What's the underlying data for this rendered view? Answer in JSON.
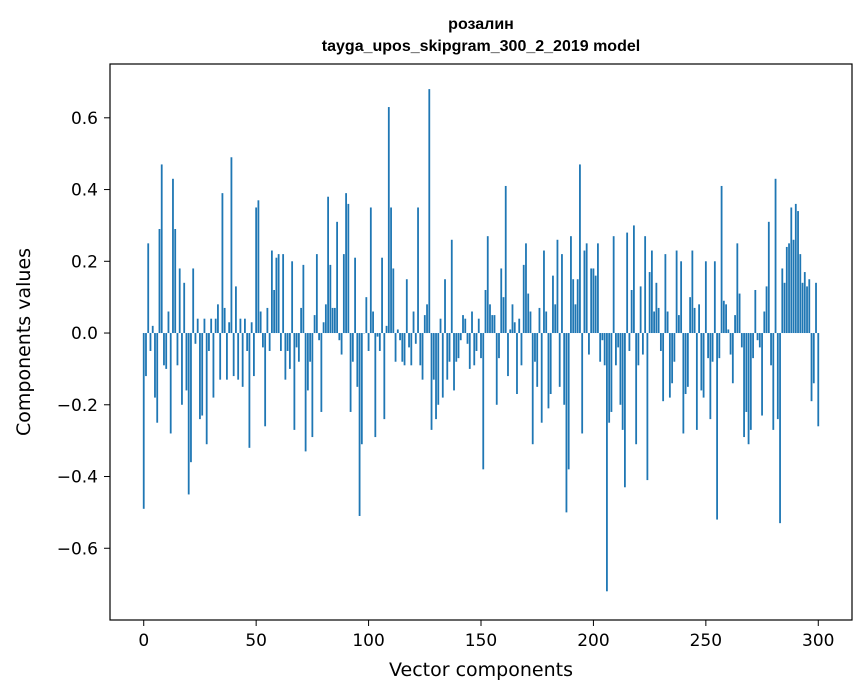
{
  "chart_data": {
    "type": "bar",
    "title": "розалин",
    "subtitle": "tayga_upos_skipgram_300_2_2019 model",
    "xlabel": "Vector components",
    "ylabel": "Components values",
    "xlim": [
      -15,
      315
    ],
    "ylim": [
      -0.8,
      0.75
    ],
    "xticks": [
      0,
      50,
      100,
      150,
      200,
      250,
      300
    ],
    "yticks": [
      -0.6,
      -0.4,
      -0.2,
      0.0,
      0.2,
      0.4,
      0.6
    ],
    "xtick_labels": [
      "0",
      "50",
      "100",
      "150",
      "200",
      "250",
      "300"
    ],
    "ytick_labels": [
      "−0.6",
      "−0.4",
      "−0.2",
      "0.0",
      "0.2",
      "0.4",
      "0.6"
    ],
    "grid": false,
    "bar_color": "#1f77b4",
    "values": [
      -0.49,
      -0.12,
      0.25,
      -0.05,
      0.02,
      -0.18,
      -0.25,
      0.29,
      0.47,
      -0.09,
      -0.1,
      0.06,
      -0.28,
      0.43,
      0.29,
      -0.09,
      0.18,
      -0.2,
      0.14,
      -0.16,
      -0.45,
      -0.36,
      0.18,
      -0.03,
      0.04,
      -0.24,
      -0.23,
      0.04,
      -0.31,
      -0.05,
      0.04,
      -0.18,
      0.04,
      0.08,
      -0.13,
      0.39,
      0.07,
      -0.13,
      0.03,
      0.49,
      -0.12,
      0.13,
      -0.13,
      0.04,
      -0.15,
      0.04,
      -0.05,
      -0.32,
      0.03,
      -0.12,
      0.35,
      0.37,
      0.06,
      -0.04,
      -0.26,
      0.07,
      -0.05,
      0.23,
      0.12,
      0.21,
      0.22,
      -0.05,
      0.22,
      -0.13,
      -0.05,
      -0.1,
      0.2,
      -0.27,
      -0.04,
      -0.08,
      0.07,
      0.19,
      -0.33,
      -0.16,
      -0.08,
      -0.29,
      0.05,
      0.22,
      -0.02,
      -0.22,
      0.03,
      0.08,
      0.38,
      0.19,
      0.07,
      0.07,
      0.31,
      -0.02,
      -0.06,
      0.22,
      0.39,
      0.36,
      -0.22,
      -0.08,
      0.21,
      -0.15,
      -0.51,
      -0.31,
      0.0,
      0.1,
      -0.05,
      0.35,
      0.06,
      -0.29,
      -0.01,
      -0.05,
      0.21,
      -0.24,
      0.02,
      0.63,
      0.35,
      0.18,
      -0.08,
      0.01,
      -0.02,
      -0.08,
      -0.09,
      0.15,
      -0.04,
      -0.09,
      0.06,
      -0.03,
      0.35,
      -0.09,
      -0.13,
      0.05,
      0.08,
      0.68,
      -0.27,
      -0.13,
      -0.24,
      -0.2,
      0.04,
      -0.18,
      0.15,
      -0.13,
      -0.08,
      0.26,
      -0.16,
      -0.08,
      -0.07,
      -0.02,
      0.05,
      0.04,
      -0.03,
      -0.1,
      0.06,
      -0.09,
      -0.05,
      0.04,
      -0.07,
      -0.38,
      0.12,
      0.27,
      0.08,
      0.05,
      0.05,
      -0.2,
      -0.07,
      0.18,
      0.1,
      0.41,
      -0.12,
      0.01,
      0.08,
      0.03,
      -0.17,
      0.04,
      -0.09,
      0.19,
      0.25,
      0.11,
      0.06,
      -0.31,
      -0.08,
      -0.15,
      0.07,
      -0.25,
      0.23,
      0.06,
      -0.21,
      -0.17,
      0.16,
      0.08,
      0.26,
      -0.15,
      0.22,
      -0.2,
      -0.5,
      -0.38,
      0.27,
      0.15,
      0.08,
      0.15,
      0.47,
      -0.28,
      0.23,
      0.25,
      -0.06,
      0.18,
      0.18,
      0.16,
      0.25,
      -0.08,
      -0.02,
      -0.09,
      -0.72,
      -0.25,
      -0.22,
      0.27,
      -0.09,
      -0.04,
      -0.2,
      -0.27,
      -0.43,
      0.28,
      -0.05,
      0.12,
      0.3,
      -0.31,
      -0.09,
      0.13,
      -0.06,
      0.27,
      -0.41,
      0.17,
      0.23,
      0.06,
      0.14,
      0.07,
      -0.05,
      -0.19,
      0.22,
      0.06,
      -0.18,
      -0.14,
      -0.08,
      0.23,
      0.05,
      0.2,
      -0.28,
      -0.17,
      -0.15,
      0.1,
      0.23,
      0.07,
      -0.27,
      0.08,
      -0.16,
      -0.18,
      0.2,
      -0.07,
      -0.24,
      -0.08,
      0.2,
      -0.52,
      -0.07,
      0.41,
      0.09,
      0.08,
      0.01,
      -0.06,
      -0.14,
      0.05,
      0.25,
      0.11,
      -0.04,
      -0.29,
      -0.22,
      -0.31,
      -0.27,
      -0.07,
      0.12,
      -0.02,
      -0.04,
      -0.23,
      0.06,
      0.13,
      0.31,
      -0.09,
      -0.27,
      0.43,
      -0.24,
      -0.53,
      0.18,
      0.14,
      0.24,
      0.25,
      0.35,
      0.26,
      0.36,
      0.34,
      0.22,
      0.14,
      0.17,
      0.13,
      0.15,
      -0.19,
      -0.14,
      0.14,
      -0.26
    ]
  }
}
